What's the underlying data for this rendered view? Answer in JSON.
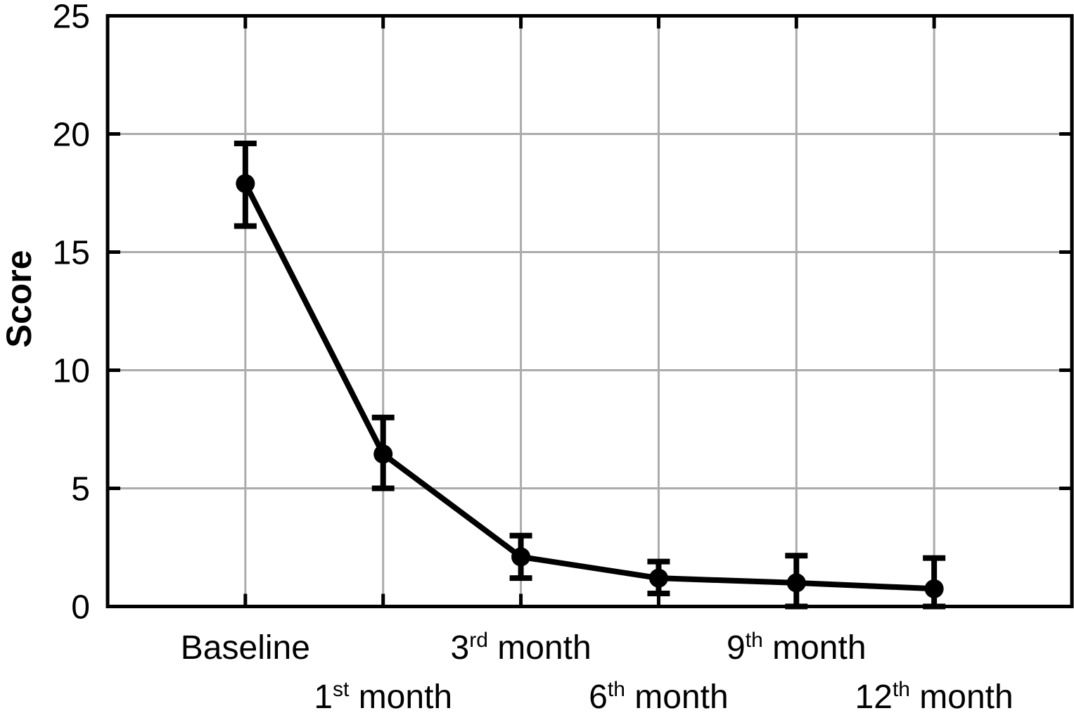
{
  "chart_data": {
    "type": "line",
    "title": "",
    "xlabel": "",
    "ylabel": "Score",
    "ylim": [
      0,
      25
    ],
    "yticks": [
      0,
      5,
      10,
      15,
      20,
      25
    ],
    "ytick_labels": [
      "0",
      "5",
      "10",
      "15",
      "20",
      "25"
    ],
    "grid": true,
    "legend": false,
    "marker": "filled-circle",
    "error_bars": true,
    "categories": [
      "Baseline",
      "1st month",
      "3rd month",
      "6th month",
      "9th month",
      "12th month"
    ],
    "category_parts": [
      {
        "pre": "Baseline",
        "sup": "",
        "post": ""
      },
      {
        "pre": "1",
        "sup": "st",
        "post": " month"
      },
      {
        "pre": "3",
        "sup": "rd",
        "post": " month"
      },
      {
        "pre": "6",
        "sup": "th",
        "post": " month"
      },
      {
        "pre": "9",
        "sup": "th",
        "post": " month"
      },
      {
        "pre": "12",
        "sup": "th",
        "post": " month"
      }
    ],
    "series": [
      {
        "name": "Score",
        "values": [
          17.9,
          6.45,
          2.1,
          1.2,
          1.0,
          0.75
        ],
        "error_upper": [
          19.6,
          8.0,
          3.0,
          1.9,
          2.15,
          2.05
        ],
        "error_lower": [
          16.1,
          5.0,
          1.2,
          0.55,
          0,
          0
        ]
      }
    ],
    "colors": {
      "line": "#000000",
      "marker": "#000000",
      "grid": "#ababab",
      "axis": "#000000",
      "text": "#000000"
    }
  }
}
